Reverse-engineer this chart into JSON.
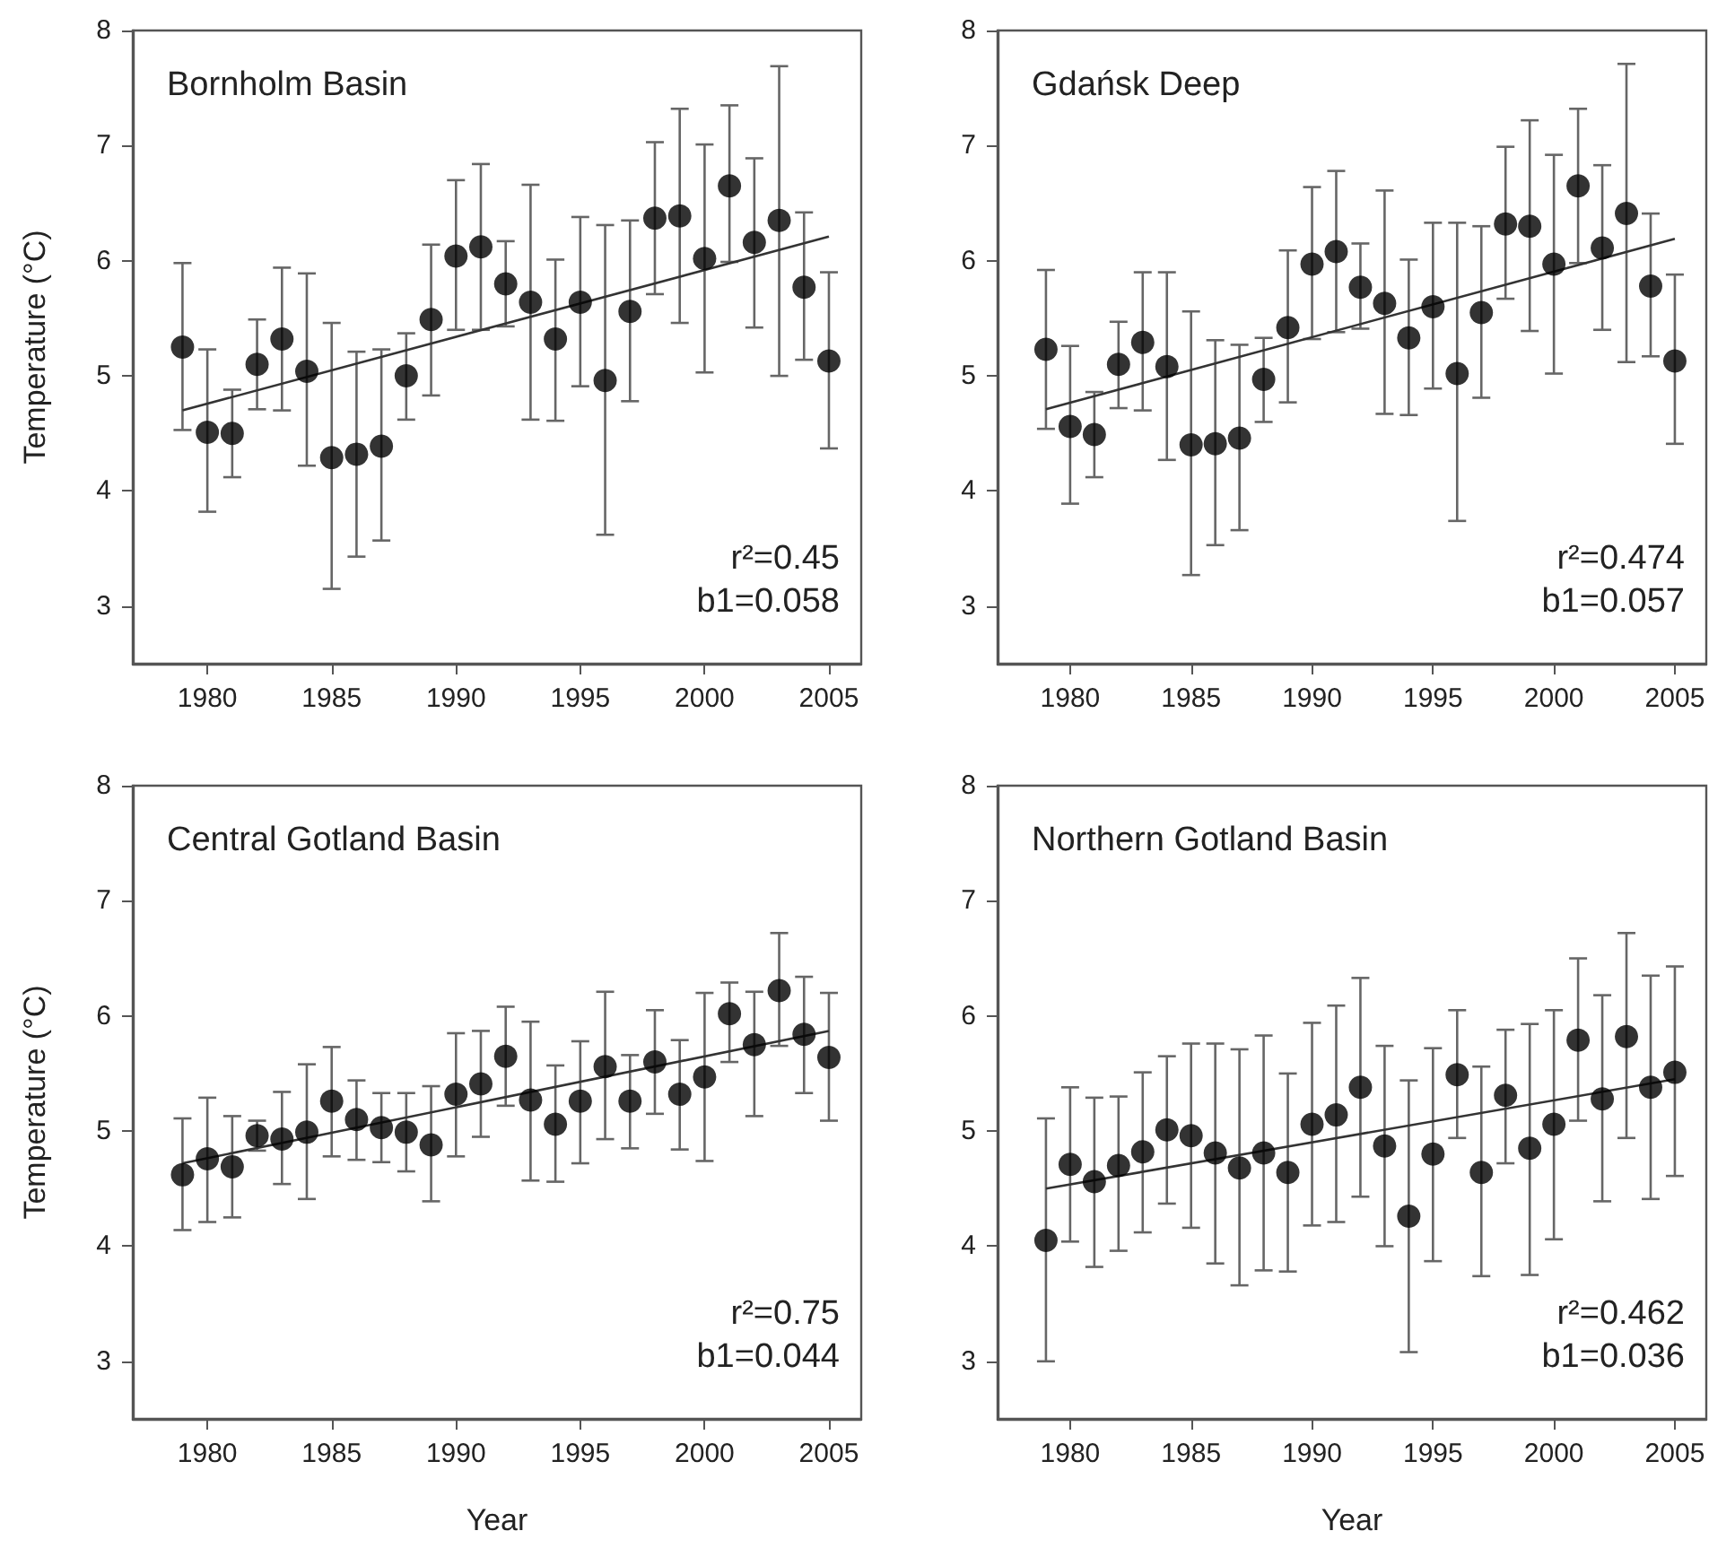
{
  "chart_data": [
    {
      "type": "scatter",
      "title": "Bornholm Basin",
      "ylabel": "Temperature (°C)",
      "grid": false,
      "xlim": [
        1977,
        2006.3
      ],
      "xticks": [
        1980,
        1985,
        1990,
        1995,
        2000,
        2005
      ],
      "ylim": [
        2.5,
        8
      ],
      "yticks": [
        3,
        4,
        5,
        6,
        7,
        8
      ],
      "annotations": [
        "r²=0.45",
        "b1=0.058"
      ],
      "x": [
        1979,
        1980,
        1981,
        1982,
        1983,
        1984,
        1985,
        1986,
        1987,
        1988,
        1989,
        1990,
        1991,
        1992,
        1993,
        1994,
        1995,
        1996,
        1997,
        1998,
        1999,
        2000,
        2001,
        2002,
        2003,
        2004,
        2005
      ],
      "series": [
        {
          "type": "scatter",
          "marker": "circle",
          "color": "#000000",
          "values": [
            5.25,
            4.51,
            4.5,
            5.1,
            5.32,
            5.04,
            4.29,
            4.32,
            4.39,
            5.0,
            5.49,
            6.04,
            6.12,
            5.8,
            5.64,
            5.32,
            5.64,
            4.96,
            5.56,
            6.37,
            6.39,
            6.02,
            6.65,
            6.16,
            6.35,
            5.77,
            5.13
          ],
          "errors": [
            [
              4.53,
              5.98
            ],
            [
              3.82,
              5.23
            ],
            [
              4.12,
              4.88
            ],
            [
              4.71,
              5.49
            ],
            [
              4.7,
              5.94
            ],
            [
              4.22,
              5.89
            ],
            [
              3.15,
              5.46
            ],
            [
              3.43,
              5.21
            ],
            [
              3.57,
              5.23
            ],
            [
              4.62,
              5.37
            ],
            [
              4.83,
              6.14
            ],
            [
              5.4,
              6.7
            ],
            [
              5.4,
              6.84
            ],
            [
              5.43,
              6.17
            ],
            [
              4.62,
              6.66
            ],
            [
              4.61,
              6.01
            ],
            [
              4.91,
              6.38
            ],
            [
              3.62,
              6.31
            ],
            [
              4.78,
              6.35
            ],
            [
              5.71,
              7.03
            ],
            [
              5.46,
              7.32
            ],
            [
              5.03,
              7.01
            ],
            [
              5.99,
              7.35
            ],
            [
              5.42,
              6.89
            ],
            [
              5.0,
              7.69
            ],
            [
              5.14,
              6.42
            ],
            [
              4.37,
              5.9
            ]
          ]
        },
        {
          "type": "line",
          "marker": "none",
          "color": "#333333",
          "values": [
            4.7,
            null,
            null,
            null,
            null,
            null,
            null,
            null,
            null,
            null,
            null,
            null,
            null,
            null,
            null,
            null,
            null,
            null,
            null,
            null,
            null,
            null,
            null,
            null,
            null,
            null,
            6.21
          ]
        }
      ]
    },
    {
      "type": "scatter",
      "title": "Gdańsk Deep",
      "grid": false,
      "xlim": [
        1977,
        2006.3
      ],
      "xticks": [
        1980,
        1985,
        1990,
        1995,
        2000,
        2005
      ],
      "ylim": [
        2.5,
        8
      ],
      "yticks": [
        3,
        4,
        5,
        6,
        7,
        8
      ],
      "annotations": [
        "r²=0.474",
        "b1=0.057"
      ],
      "x": [
        1979,
        1980,
        1981,
        1982,
        1983,
        1984,
        1985,
        1986,
        1987,
        1988,
        1989,
        1990,
        1991,
        1992,
        1993,
        1994,
        1995,
        1996,
        1997,
        1998,
        1999,
        2000,
        2001,
        2002,
        2003,
        2004,
        2005
      ],
      "series": [
        {
          "type": "scatter",
          "marker": "circle",
          "color": "#000000",
          "values": [
            5.23,
            4.56,
            4.49,
            5.1,
            5.29,
            5.08,
            4.4,
            4.41,
            4.46,
            4.97,
            5.42,
            5.97,
            6.08,
            5.77,
            5.63,
            5.33,
            5.6,
            5.02,
            5.55,
            6.32,
            6.3,
            5.97,
            6.65,
            6.11,
            6.41,
            5.78,
            5.13
          ],
          "errors": [
            [
              4.54,
              5.92
            ],
            [
              3.89,
              5.26
            ],
            [
              4.12,
              4.86
            ],
            [
              4.72,
              5.47
            ],
            [
              4.7,
              5.9
            ],
            [
              4.27,
              5.9
            ],
            [
              3.27,
              5.56
            ],
            [
              3.53,
              5.31
            ],
            [
              3.66,
              5.27
            ],
            [
              4.6,
              5.33
            ],
            [
              4.77,
              6.09
            ],
            [
              5.32,
              6.64
            ],
            [
              5.38,
              6.78
            ],
            [
              5.41,
              6.15
            ],
            [
              4.67,
              6.61
            ],
            [
              4.66,
              6.01
            ],
            [
              4.89,
              6.33
            ],
            [
              3.74,
              6.33
            ],
            [
              4.81,
              6.3
            ],
            [
              5.67,
              6.99
            ],
            [
              5.39,
              7.22
            ],
            [
              5.02,
              6.92
            ],
            [
              5.98,
              7.32
            ],
            [
              5.4,
              6.83
            ],
            [
              5.12,
              7.71
            ],
            [
              5.17,
              6.41
            ],
            [
              4.41,
              5.88
            ]
          ]
        },
        {
          "type": "line",
          "marker": "none",
          "color": "#333333",
          "values": [
            4.71,
            null,
            null,
            null,
            null,
            null,
            null,
            null,
            null,
            null,
            null,
            null,
            null,
            null,
            null,
            null,
            null,
            null,
            null,
            null,
            null,
            null,
            null,
            null,
            null,
            null,
            6.19
          ]
        }
      ]
    },
    {
      "type": "scatter",
      "title": "Central Gotland Basin",
      "xlabel": "Year",
      "ylabel": "Temperature (°C)",
      "grid": false,
      "xlim": [
        1977,
        2006.3
      ],
      "xticks": [
        1980,
        1985,
        1990,
        1995,
        2000,
        2005
      ],
      "ylim": [
        2.5,
        8
      ],
      "yticks": [
        3,
        4,
        5,
        6,
        7,
        8
      ],
      "annotations": [
        "r²=0.75",
        "b1=0.044"
      ],
      "x": [
        1979,
        1980,
        1981,
        1982,
        1983,
        1984,
        1985,
        1986,
        1987,
        1988,
        1989,
        1990,
        1991,
        1992,
        1993,
        1994,
        1995,
        1996,
        1997,
        1998,
        1999,
        2000,
        2001,
        2002,
        2003,
        2004,
        2005
      ],
      "series": [
        {
          "type": "scatter",
          "marker": "circle",
          "color": "#000000",
          "values": [
            4.62,
            4.76,
            4.69,
            4.96,
            4.93,
            4.99,
            5.26,
            5.1,
            5.03,
            4.99,
            4.88,
            5.32,
            5.41,
            5.65,
            5.27,
            5.06,
            5.26,
            5.56,
            5.26,
            5.6,
            5.32,
            5.47,
            6.02,
            5.75,
            6.22,
            5.84,
            5.64
          ],
          "errors": [
            [
              4.14,
              5.11
            ],
            [
              4.21,
              5.29
            ],
            [
              4.25,
              5.13
            ],
            [
              4.83,
              5.09
            ],
            [
              4.54,
              5.34
            ],
            [
              4.41,
              5.58
            ],
            [
              4.78,
              5.73
            ],
            [
              4.75,
              5.44
            ],
            [
              4.73,
              5.33
            ],
            [
              4.65,
              5.33
            ],
            [
              4.39,
              5.39
            ],
            [
              4.78,
              5.85
            ],
            [
              4.95,
              5.87
            ],
            [
              5.22,
              6.08
            ],
            [
              4.57,
              5.95
            ],
            [
              4.56,
              5.57
            ],
            [
              4.72,
              5.78
            ],
            [
              4.93,
              6.21
            ],
            [
              4.85,
              5.66
            ],
            [
              5.15,
              6.05
            ],
            [
              4.84,
              5.79
            ],
            [
              4.74,
              6.2
            ],
            [
              5.6,
              6.29
            ],
            [
              5.13,
              6.21
            ],
            [
              5.74,
              6.72
            ],
            [
              5.33,
              6.34
            ],
            [
              5.09,
              6.2
            ]
          ]
        },
        {
          "type": "line",
          "marker": "none",
          "color": "#333333",
          "values": [
            4.72,
            null,
            null,
            null,
            null,
            null,
            null,
            null,
            null,
            null,
            null,
            null,
            null,
            null,
            null,
            null,
            null,
            null,
            null,
            null,
            null,
            null,
            null,
            null,
            null,
            null,
            5.87
          ]
        }
      ]
    },
    {
      "type": "scatter",
      "title": "Northern Gotland Basin",
      "xlabel": "Year",
      "grid": false,
      "xlim": [
        1977,
        2006.3
      ],
      "xticks": [
        1980,
        1985,
        1990,
        1995,
        2000,
        2005
      ],
      "ylim": [
        2.5,
        8
      ],
      "yticks": [
        3,
        4,
        5,
        6,
        7,
        8
      ],
      "annotations": [
        "r²=0.462",
        "b1=0.036"
      ],
      "x": [
        1979,
        1980,
        1981,
        1982,
        1983,
        1984,
        1985,
        1986,
        1987,
        1988,
        1989,
        1990,
        1991,
        1992,
        1993,
        1994,
        1995,
        1996,
        1997,
        1998,
        1999,
        2000,
        2001,
        2002,
        2003,
        2004,
        2005
      ],
      "series": [
        {
          "type": "scatter",
          "marker": "circle",
          "color": "#000000",
          "values": [
            4.05,
            4.71,
            4.56,
            4.7,
            4.82,
            5.01,
            4.96,
            4.81,
            4.68,
            4.81,
            4.64,
            5.06,
            5.14,
            5.38,
            4.87,
            4.26,
            4.8,
            5.49,
            4.64,
            5.31,
            4.85,
            5.06,
            5.79,
            5.28,
            5.82,
            5.38,
            5.51
          ],
          "errors": [
            [
              3.0,
              5.11
            ],
            [
              4.04,
              5.38
            ],
            [
              3.82,
              5.29
            ],
            [
              3.96,
              5.3
            ],
            [
              4.12,
              5.51
            ],
            [
              4.37,
              5.65
            ],
            [
              4.16,
              5.76
            ],
            [
              3.85,
              5.76
            ],
            [
              3.66,
              5.71
            ],
            [
              3.79,
              5.83
            ],
            [
              3.78,
              5.5
            ],
            [
              4.18,
              5.94
            ],
            [
              4.21,
              6.09
            ],
            [
              4.43,
              6.33
            ],
            [
              4.0,
              5.74
            ],
            [
              3.08,
              5.44
            ],
            [
              3.87,
              5.72
            ],
            [
              4.94,
              6.05
            ],
            [
              3.74,
              5.56
            ],
            [
              4.72,
              5.88
            ],
            [
              3.75,
              5.93
            ],
            [
              4.06,
              6.05
            ],
            [
              5.09,
              6.5
            ],
            [
              4.39,
              6.18
            ],
            [
              4.94,
              6.72
            ],
            [
              4.41,
              6.35
            ],
            [
              4.61,
              6.43
            ]
          ]
        },
        {
          "type": "line",
          "marker": "none",
          "color": "#333333",
          "values": [
            4.5,
            null,
            null,
            null,
            null,
            null,
            null,
            null,
            null,
            null,
            null,
            null,
            null,
            null,
            null,
            null,
            null,
            null,
            null,
            null,
            null,
            null,
            null,
            null,
            null,
            null,
            5.45
          ]
        }
      ]
    }
  ]
}
